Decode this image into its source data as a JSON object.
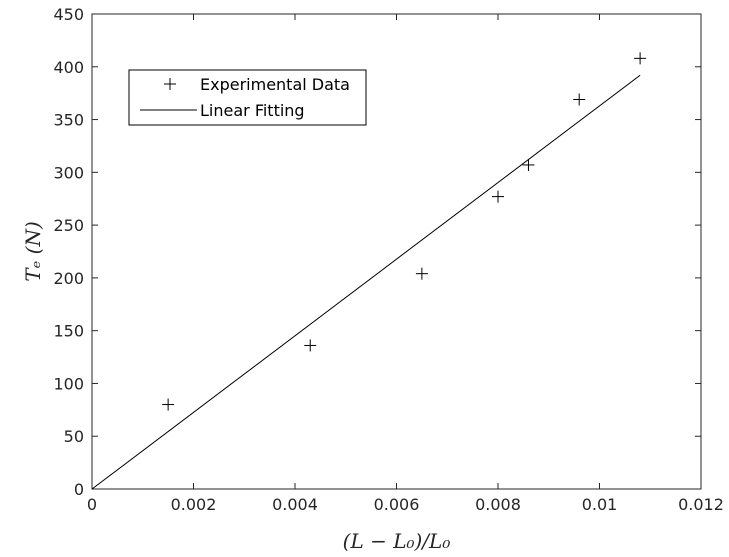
{
  "chart_data": {
    "type": "scatter",
    "xlabel": "(L − L₀)/L₀",
    "ylabel": "Tₑ (N)",
    "xlim": [
      0,
      0.012
    ],
    "ylim": [
      0,
      450
    ],
    "x_ticks": [
      "0",
      "0.002",
      "0.004",
      "0.006",
      "0.008",
      "0.01",
      "0.012"
    ],
    "y_ticks": [
      "0",
      "50",
      "100",
      "150",
      "200",
      "250",
      "300",
      "350",
      "400",
      "450"
    ],
    "grid": false,
    "legend_position": "top-left",
    "series": [
      {
        "name": "Experimental Data",
        "marker": "plus",
        "x": [
          0.0015,
          0.0043,
          0.0065,
          0.008,
          0.0086,
          0.0096,
          0.0108
        ],
        "y": [
          80,
          136,
          204,
          277,
          307,
          369,
          408
        ]
      },
      {
        "name": "Linear Fitting",
        "line": true,
        "x": [
          0,
          0.0108
        ],
        "y": [
          0,
          392
        ]
      }
    ],
    "color": "#000000"
  }
}
